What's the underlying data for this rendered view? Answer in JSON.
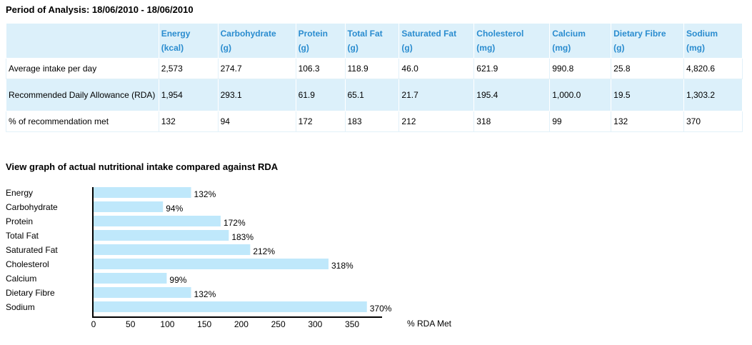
{
  "period": "Period of Analysis: 18/06/2010 - 18/06/2010",
  "table": {
    "columns": [
      {
        "name": "Energy",
        "unit": "(kcal)"
      },
      {
        "name": "Carbohydrate",
        "unit": "(g)"
      },
      {
        "name": "Protein",
        "unit": "(g)"
      },
      {
        "name": "Total Fat",
        "unit": "(g)"
      },
      {
        "name": "Saturated Fat",
        "unit": "(g)"
      },
      {
        "name": "Cholesterol",
        "unit": "(mg)"
      },
      {
        "name": "Calcium",
        "unit": "(mg)"
      },
      {
        "name": "Dietary Fibre",
        "unit": "(g)"
      },
      {
        "name": "Sodium",
        "unit": "(mg)"
      }
    ],
    "rows": [
      {
        "label": "Average intake per day",
        "values": [
          "2,573",
          "274.7",
          "106.3",
          "118.9",
          "46.0",
          "621.9",
          "990.8",
          "25.8",
          "4,820.6"
        ]
      },
      {
        "label": "Recommended Daily Allowance (RDA)",
        "values": [
          "1,954",
          "293.1",
          "61.9",
          "65.1",
          "21.7",
          "195.4",
          "1,000.0",
          "19.5",
          "1,303.2"
        ]
      },
      {
        "label": "% of recommendation met",
        "values": [
          "132",
          "94",
          "172",
          "183",
          "212",
          "318",
          "99",
          "132",
          "370"
        ]
      }
    ]
  },
  "graph_title": "View graph of actual nutritional intake compared against RDA",
  "chart_data": {
    "type": "bar",
    "orientation": "horizontal",
    "categories": [
      "Energy",
      "Carbohydrate",
      "Protein",
      "Total Fat",
      "Saturated Fat",
      "Cholesterol",
      "Calcium",
      "Dietary Fibre",
      "Sodium"
    ],
    "values": [
      132,
      94,
      172,
      183,
      212,
      318,
      99,
      132,
      370
    ],
    "value_labels": [
      "132%",
      "94%",
      "172%",
      "183%",
      "212%",
      "318%",
      "99%",
      "132%",
      "370%"
    ],
    "xlabel": "% RDA Met",
    "xticks": [
      0,
      50,
      100,
      150,
      200,
      250,
      300,
      350
    ],
    "xlim": [
      0,
      390
    ],
    "bar_color": "#bfe8fb",
    "grid": false
  }
}
